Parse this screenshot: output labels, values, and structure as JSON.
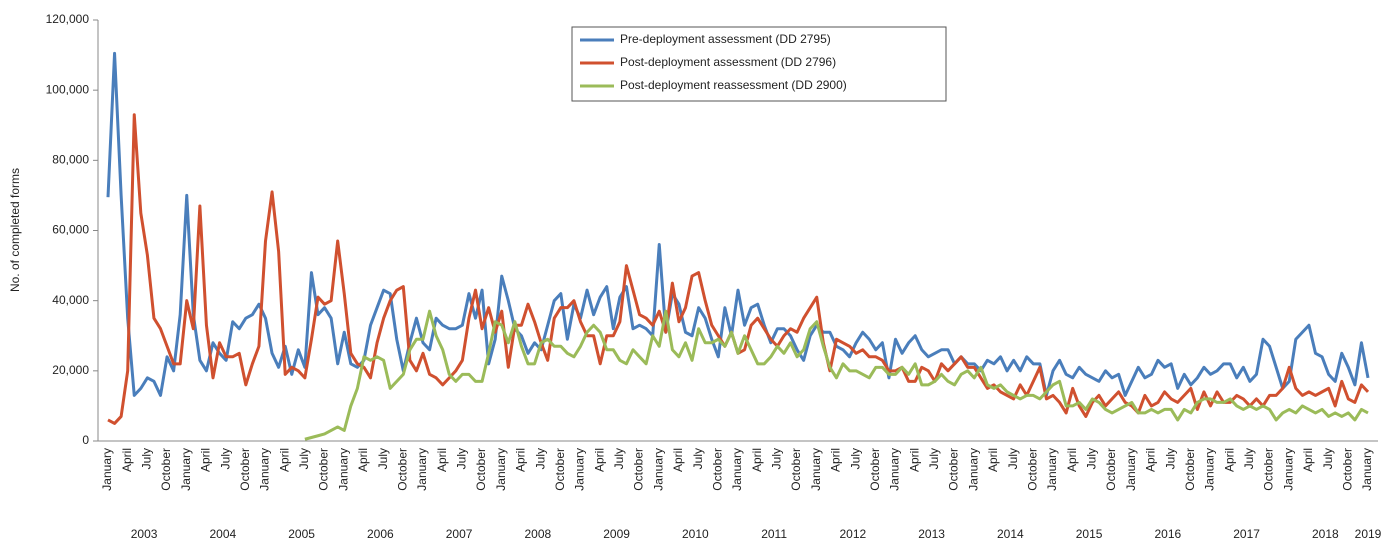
{
  "chart_data": {
    "type": "line",
    "y_label": "No. of completed forms",
    "categories": [
      "January",
      null,
      null,
      "April",
      null,
      null,
      "July",
      null,
      null,
      "October",
      null,
      null,
      "January",
      null,
      null,
      "April",
      null,
      null,
      "July",
      null,
      null,
      "October",
      null,
      null,
      "January",
      null,
      null,
      "April",
      null,
      null,
      "July",
      null,
      null,
      "October",
      null,
      null,
      "January",
      null,
      null,
      "April",
      null,
      null,
      "July",
      null,
      null,
      "October",
      null,
      null,
      "January",
      null,
      null,
      "April",
      null,
      null,
      "July",
      null,
      null,
      "October",
      null,
      null,
      "January",
      null,
      null,
      "April",
      null,
      null,
      "July",
      null,
      null,
      "October",
      null,
      null,
      "January",
      null,
      null,
      "April",
      null,
      null,
      "July",
      null,
      null,
      "October",
      null,
      null,
      "January",
      null,
      null,
      "April",
      null,
      null,
      "July",
      null,
      null,
      "October",
      null,
      null,
      "January",
      null,
      null,
      "April",
      null,
      null,
      "July",
      null,
      null,
      "October",
      null,
      null,
      "January",
      null,
      null,
      "April",
      null,
      null,
      "July",
      null,
      null,
      "October",
      null,
      null,
      "January",
      null,
      null,
      "April",
      null,
      null,
      "July",
      null,
      null,
      "October",
      null,
      null,
      "January",
      null,
      null,
      "April",
      null,
      null,
      "July",
      null,
      null,
      "October",
      null,
      null,
      "January",
      null,
      null,
      "April",
      null,
      null,
      "July",
      null,
      null,
      "October",
      null,
      null,
      "January",
      null,
      null,
      "April",
      null,
      null,
      "July",
      null,
      null,
      "October",
      null,
      null,
      "January",
      null,
      null,
      "April",
      null,
      null,
      "July",
      null,
      null,
      "October",
      null,
      null,
      "January",
      null,
      null,
      "April",
      null,
      null,
      "July",
      null,
      null,
      "October",
      null,
      null,
      "January"
    ],
    "years": [
      "2003",
      "2004",
      "2005",
      "2006",
      "2007",
      "2008",
      "2009",
      "2010",
      "2011",
      "2012",
      "2013",
      "2014",
      "2015",
      "2016",
      "2017",
      "2018",
      "2019"
    ],
    "ylim": [
      0,
      120000
    ],
    "yticks": [
      0,
      {
        "value": 20000,
        "label": "20,000"
      },
      {
        "value": 40000,
        "label": "40,000"
      },
      {
        "value": 60000,
        "label": "60,000"
      },
      {
        "value": 80000,
        "label": "80,000"
      },
      {
        "value": 100000,
        "label": "100,000"
      },
      {
        "value": 120000,
        "label": "120,000"
      }
    ],
    "series": [
      {
        "name": "Pre-deployment assessment (DD 2795)",
        "color": "#4a7ebb",
        "values": [
          69500,
          110500,
          70000,
          35000,
          13000,
          15000,
          18000,
          17000,
          13000,
          24000,
          20000,
          36000,
          70000,
          36000,
          23000,
          20000,
          28000,
          25000,
          23000,
          34000,
          32000,
          35000,
          36000,
          39000,
          35000,
          25000,
          21000,
          27000,
          19000,
          26000,
          21000,
          48000,
          36000,
          38000,
          35000,
          22000,
          31000,
          22000,
          21000,
          23000,
          33000,
          38000,
          43000,
          42000,
          29000,
          20000,
          28000,
          35000,
          28000,
          26000,
          35000,
          33000,
          32000,
          32000,
          33000,
          42000,
          35000,
          43000,
          22000,
          29000,
          47000,
          40000,
          32000,
          30000,
          25000,
          28000,
          26000,
          33000,
          40000,
          42000,
          29000,
          39000,
          35000,
          43000,
          36000,
          41000,
          44000,
          32000,
          41000,
          44000,
          32000,
          33000,
          32000,
          30000,
          56000,
          31000,
          42000,
          39000,
          31000,
          30000,
          38000,
          35000,
          29000,
          24000,
          38000,
          30000,
          43000,
          33000,
          38000,
          39000,
          33000,
          28000,
          32000,
          32000,
          30000,
          26000,
          23000,
          30000,
          33000,
          31000,
          31000,
          27000,
          26000,
          24000,
          28000,
          31000,
          29000,
          26000,
          28000,
          18000,
          29000,
          25000,
          28000,
          30000,
          26000,
          24000,
          25000,
          26000,
          26000,
          22000,
          24000,
          22000,
          22000,
          20000,
          23000,
          22000,
          24000,
          20000,
          23000,
          20000,
          24000,
          22000,
          22000,
          13000,
          20000,
          23000,
          19000,
          18000,
          21000,
          19000,
          18000,
          17000,
          20000,
          18000,
          19000,
          13000,
          17000,
          21000,
          18000,
          19000,
          23000,
          21000,
          22000,
          15000,
          19000,
          16000,
          18000,
          21000,
          19000,
          20000,
          22000,
          22000,
          18000,
          21000,
          17000,
          19000,
          29000,
          27000,
          21000,
          15000,
          17000,
          29000,
          31000,
          33000,
          25000,
          24000,
          19000,
          17000,
          25000,
          21000,
          16000,
          28000,
          18000
        ]
      },
      {
        "name": "Post-deployment assessment (DD 2796)",
        "color": "#d0502f",
        "values": [
          6000,
          5000,
          7000,
          20000,
          93000,
          65000,
          53000,
          35000,
          32000,
          27000,
          22000,
          22000,
          40000,
          32000,
          67000,
          33000,
          18000,
          28000,
          24000,
          24000,
          25000,
          16000,
          22000,
          27000,
          57000,
          71000,
          54000,
          19000,
          21000,
          20000,
          18000,
          29000,
          41000,
          39000,
          40000,
          57000,
          42000,
          25000,
          22000,
          21000,
          18000,
          28000,
          35000,
          40000,
          43000,
          44000,
          23000,
          20000,
          25000,
          19000,
          18000,
          16000,
          18000,
          20000,
          23000,
          35000,
          43000,
          32000,
          38000,
          31000,
          37000,
          21000,
          33000,
          33000,
          39000,
          34000,
          28000,
          23000,
          35000,
          38000,
          38000,
          40000,
          34000,
          30000,
          30000,
          22000,
          30000,
          30000,
          34000,
          50000,
          43000,
          36000,
          35000,
          33000,
          37000,
          31000,
          45000,
          34000,
          38000,
          47000,
          48000,
          40000,
          33000,
          30000,
          27000,
          31000,
          25000,
          26000,
          33000,
          35000,
          32000,
          29000,
          27000,
          30000,
          32000,
          31000,
          35000,
          38000,
          41000,
          28000,
          20000,
          29000,
          28000,
          27000,
          25000,
          26000,
          24000,
          24000,
          23000,
          20000,
          20000,
          21000,
          17000,
          17000,
          21000,
          20000,
          17000,
          22000,
          20000,
          22000,
          24000,
          21000,
          21000,
          18000,
          15000,
          16000,
          14000,
          13000,
          12000,
          16000,
          13000,
          17000,
          21000,
          12000,
          13000,
          11000,
          8000,
          15000,
          10000,
          7000,
          11000,
          13000,
          10000,
          12000,
          14000,
          11000,
          10000,
          8000,
          13000,
          10000,
          11000,
          14000,
          12000,
          11000,
          13000,
          15000,
          9000,
          14000,
          10000,
          14000,
          11000,
          11000,
          13000,
          12000,
          10000,
          12000,
          10000,
          13000,
          13000,
          15000,
          21000,
          15000,
          13000,
          14000,
          13000,
          14000,
          15000,
          10000,
          17000,
          12000,
          11000,
          16000,
          14000
        ]
      },
      {
        "name": "Post-deployment reassessment (DD 2900)",
        "color": "#9bbb59",
        "values": [
          null,
          null,
          null,
          null,
          null,
          null,
          null,
          null,
          null,
          null,
          null,
          null,
          null,
          null,
          null,
          null,
          null,
          null,
          null,
          null,
          null,
          null,
          null,
          null,
          null,
          null,
          null,
          null,
          null,
          null,
          500,
          1000,
          1500,
          2000,
          3000,
          4000,
          3000,
          10000,
          15000,
          24000,
          23000,
          24000,
          23000,
          15000,
          17000,
          19000,
          26000,
          29000,
          29000,
          37000,
          30000,
          26000,
          19000,
          17000,
          19000,
          19000,
          17000,
          17000,
          25000,
          34000,
          33000,
          28000,
          34000,
          27000,
          22000,
          22000,
          28000,
          29000,
          27000,
          27000,
          25000,
          24000,
          27000,
          31000,
          33000,
          31000,
          26000,
          26000,
          23000,
          22000,
          26000,
          24000,
          22000,
          30000,
          27000,
          37000,
          26000,
          24000,
          28000,
          23000,
          32000,
          28000,
          28000,
          29000,
          27000,
          31000,
          25000,
          30000,
          26000,
          22000,
          22000,
          24000,
          27000,
          25000,
          28000,
          24000,
          26000,
          32000,
          34000,
          27000,
          21000,
          18000,
          22000,
          20000,
          20000,
          19000,
          18000,
          21000,
          21000,
          19000,
          19000,
          21000,
          19000,
          22000,
          16000,
          16000,
          17000,
          19000,
          17000,
          16000,
          19000,
          20000,
          18000,
          21000,
          16000,
          15000,
          16000,
          14000,
          13000,
          12000,
          13000,
          13000,
          12000,
          14000,
          16000,
          17000,
          10000,
          10000,
          11000,
          9000,
          12000,
          11000,
          9000,
          8000,
          9000,
          10000,
          11000,
          8000,
          8000,
          9000,
          8000,
          9000,
          9000,
          6000,
          9000,
          8000,
          11000,
          12000,
          12000,
          11000,
          11000,
          12000,
          10000,
          9000,
          10000,
          9000,
          10000,
          9000,
          6000,
          8000,
          9000,
          8000,
          10000,
          9000,
          8000,
          9000,
          7000,
          8000,
          7000,
          8000,
          6000,
          9000,
          8000
        ]
      }
    ]
  }
}
